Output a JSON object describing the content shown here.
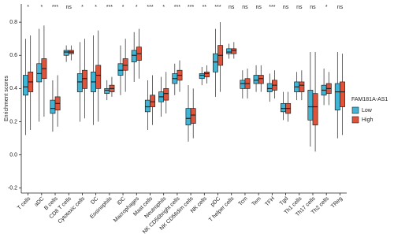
{
  "chart_data": {
    "type": "boxplot",
    "ylabel": "Enrichment scores",
    "legend_title": "FAM181A-AS1",
    "ylim": [
      -0.23,
      0.91
    ],
    "yticks": [
      -0.2,
      {
        "value": 0,
        "label": "0.0"
      },
      0.2,
      0.4,
      0.6,
      0.8
    ],
    "categories": [
      "T cells",
      "aDC",
      "B cells",
      "CD8 T cells",
      "Cytotoxic cells",
      "DC",
      "Eosinophils",
      "iDC",
      "Macrophages",
      "Mast cells",
      "Neutrophils",
      "NK CD56bright cells",
      "NK CD56dim cells",
      "NK cells",
      "pDC",
      "T helper cells",
      "Tcm",
      "Tem",
      "TFH",
      "Tgd",
      "Th1 cells",
      "Th17 cells",
      "Th2 cells",
      "TReg"
    ],
    "significance": [
      "*",
      "*",
      "***",
      "ns",
      "*",
      "*",
      "***",
      "*",
      "*",
      "***",
      "*",
      "***",
      "***",
      "**",
      "***",
      "ns",
      "ns",
      "ns",
      "***",
      "ns",
      "ns",
      "ns",
      "*",
      "ns"
    ],
    "series": [
      {
        "name": "Low",
        "color": "#3fb4d4",
        "min": [
          0.12,
          0.2,
          0.14,
          0.56,
          0.2,
          0.18,
          0.33,
          0.36,
          0.44,
          0.15,
          0.23,
          0.36,
          0.08,
          0.42,
          0.35,
          0.58,
          0.34,
          0.38,
          0.32,
          0.21,
          0.33,
          0.05,
          0.3,
          0.1
        ],
        "q1": [
          0.36,
          0.44,
          0.25,
          0.6,
          0.38,
          0.38,
          0.37,
          0.48,
          0.56,
          0.26,
          0.32,
          0.43,
          0.18,
          0.46,
          0.5,
          0.61,
          0.4,
          0.43,
          0.38,
          0.26,
          0.38,
          0.21,
          0.36,
          0.27
        ],
        "median": [
          0.41,
          0.49,
          0.28,
          0.62,
          0.44,
          0.44,
          0.39,
          0.51,
          0.6,
          0.29,
          0.35,
          0.46,
          0.22,
          0.48,
          0.56,
          0.62,
          0.43,
          0.45,
          0.4,
          0.28,
          0.41,
          0.29,
          0.39,
          0.38
        ],
        "q3": [
          0.48,
          0.55,
          0.33,
          0.63,
          0.49,
          0.5,
          0.4,
          0.55,
          0.63,
          0.33,
          0.38,
          0.49,
          0.28,
          0.49,
          0.61,
          0.64,
          0.45,
          0.48,
          0.43,
          0.31,
          0.44,
          0.39,
          0.42,
          0.43
        ],
        "max": [
          0.7,
          0.76,
          0.45,
          0.66,
          0.68,
          0.72,
          0.45,
          0.66,
          0.74,
          0.45,
          0.47,
          0.55,
          0.42,
          0.53,
          0.76,
          0.67,
          0.51,
          0.54,
          0.49,
          0.38,
          0.5,
          0.62,
          0.52,
          0.62
        ]
      },
      {
        "name": "High",
        "color": "#e0533b",
        "min": [
          0.15,
          0.23,
          0.17,
          0.57,
          0.22,
          0.2,
          0.35,
          0.38,
          0.46,
          0.18,
          0.25,
          0.38,
          0.1,
          0.43,
          0.38,
          0.58,
          0.34,
          0.38,
          0.34,
          0.2,
          0.33,
          0.02,
          0.3,
          0.12
        ],
        "q1": [
          0.38,
          0.46,
          0.27,
          0.61,
          0.4,
          0.4,
          0.38,
          0.51,
          0.57,
          0.29,
          0.33,
          0.45,
          0.19,
          0.47,
          0.54,
          0.61,
          0.4,
          0.43,
          0.39,
          0.25,
          0.38,
          0.18,
          0.37,
          0.29
        ],
        "median": [
          0.44,
          0.52,
          0.31,
          0.62,
          0.46,
          0.48,
          0.4,
          0.54,
          0.61,
          0.32,
          0.37,
          0.48,
          0.24,
          0.49,
          0.6,
          0.63,
          0.43,
          0.46,
          0.42,
          0.28,
          0.42,
          0.29,
          0.4,
          0.38
        ],
        "q3": [
          0.5,
          0.58,
          0.35,
          0.63,
          0.51,
          0.54,
          0.42,
          0.58,
          0.65,
          0.36,
          0.4,
          0.51,
          0.28,
          0.5,
          0.66,
          0.64,
          0.46,
          0.48,
          0.45,
          0.31,
          0.44,
          0.37,
          0.43,
          0.44
        ],
        "max": [
          0.72,
          0.78,
          0.48,
          0.66,
          0.7,
          0.75,
          0.47,
          0.7,
          0.76,
          0.48,
          0.5,
          0.57,
          0.4,
          0.54,
          0.8,
          0.68,
          0.52,
          0.54,
          0.51,
          0.38,
          0.51,
          0.62,
          0.5,
          0.61
        ]
      }
    ]
  }
}
